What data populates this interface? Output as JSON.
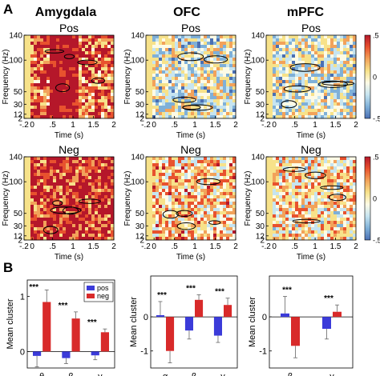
{
  "figure": {
    "panel_labels": [
      "A",
      "B"
    ],
    "region_titles": [
      "Amygdala",
      "OFC",
      "mPFC"
    ],
    "row_labels": [
      "Pos",
      "Neg"
    ]
  },
  "colorbar": {
    "tick_labels": [
      ".5",
      "0",
      "-.5"
    ],
    "colors": [
      "#b5172a",
      "#e8522e",
      "#f2a25a",
      "#f7e28a",
      "#fdfbe6",
      "#c6e4f0",
      "#7fb0d8",
      "#4a6fb3"
    ]
  },
  "chart_data": [
    {
      "type": "heatmap",
      "panel": "A",
      "xlabel": "Time (s)",
      "ylabel": "Frequency (Hz)",
      "x_tick_labels": [
        "-.2",
        "0",
        ".5",
        "1",
        "1.5",
        "2"
      ],
      "x_ticks": [
        -0.2,
        0,
        0.5,
        1,
        1.5,
        2
      ],
      "xlim": [
        -0.2,
        2
      ],
      "y_tick_labels": [
        "140",
        "100",
        "50",
        "30",
        "12",
        "2"
      ],
      "y_ticks": [
        140,
        100,
        50,
        30,
        12,
        2
      ],
      "ylim": [
        2,
        140
      ],
      "colorbar_range": [
        -0.5,
        0.5
      ],
      "colormap": "blue-white-red",
      "cluster_outlines": "black",
      "maps": [
        {
          "region": "Amygdala",
          "condition": "Pos",
          "dominant_value": 0.4,
          "hotspot_time_range": [
            0.4,
            1.1
          ]
        },
        {
          "region": "OFC",
          "condition": "Pos",
          "dominant_value": -0.1
        },
        {
          "region": "mPFC",
          "condition": "Pos",
          "dominant_value": -0.1
        },
        {
          "region": "Amygdala",
          "condition": "Neg",
          "dominant_value": 0.45
        },
        {
          "region": "OFC",
          "condition": "Neg",
          "dominant_value": 0.1
        },
        {
          "region": "mPFC",
          "condition": "Neg",
          "dominant_value": 0.05
        }
      ]
    },
    {
      "type": "bar",
      "panel": "B",
      "region": "Amygdala",
      "ylabel": "Mean cluster",
      "categories": [
        "θ",
        "β",
        "γ"
      ],
      "series": [
        {
          "name": "pos",
          "values": [
            -0.08,
            -0.12,
            -0.07
          ],
          "errors": [
            0.2,
            0.1,
            0.08
          ]
        },
        {
          "name": "neg",
          "values": [
            0.9,
            0.6,
            0.35
          ],
          "errors": [
            0.22,
            0.12,
            0.06
          ]
        }
      ],
      "significance": [
        "***",
        "***",
        "***"
      ],
      "y_ticks": [
        0,
        1
      ],
      "ylim": [
        -0.3,
        1.3
      ],
      "legend": [
        "pos",
        "neg"
      ],
      "legend_position": "top-right"
    },
    {
      "type": "bar",
      "panel": "B",
      "region": "OFC",
      "ylabel": "Mean cluster",
      "categories": [
        "α",
        "β",
        "γ"
      ],
      "series": [
        {
          "name": "pos",
          "values": [
            0.05,
            -0.4,
            -0.55
          ],
          "errors": [
            0.4,
            0.25,
            0.2
          ]
        },
        {
          "name": "neg",
          "values": [
            -1.0,
            0.5,
            0.35
          ],
          "errors": [
            0.35,
            0.15,
            0.2
          ]
        }
      ],
      "significance": [
        "***",
        "***",
        "***"
      ],
      "y_ticks": [
        -1,
        0
      ],
      "ylim": [
        -1.5,
        1.2
      ]
    },
    {
      "type": "bar",
      "panel": "B",
      "region": "mPFC",
      "ylabel": "Mean cluster",
      "categories": [
        "β",
        "γ"
      ],
      "series": [
        {
          "name": "pos",
          "values": [
            0.1,
            -0.35
          ],
          "errors": [
            0.5,
            0.3
          ]
        },
        {
          "name": "neg",
          "values": [
            -0.85,
            0.15
          ],
          "errors": [
            0.35,
            0.2
          ]
        }
      ],
      "significance": [
        "***",
        "***"
      ],
      "y_ticks": [
        0,
        -1
      ],
      "ylim": [
        -1.5,
        1.2
      ]
    }
  ]
}
